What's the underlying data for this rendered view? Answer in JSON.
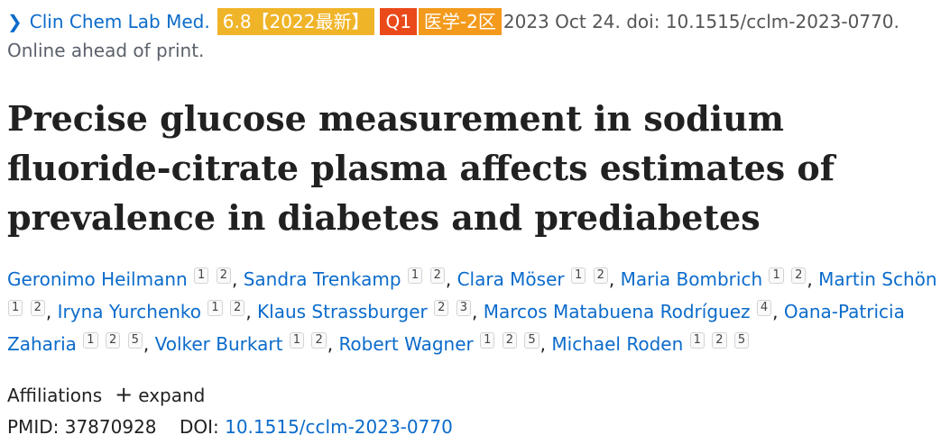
{
  "citation": {
    "journal": "Clin Chem Lab Med.",
    "impact_badge": "6.8【2022最新】",
    "quartile_badge": "Q1",
    "category_badge": "医学-2区",
    "date_doi": "2023 Oct 24. doi: 10.1515/cclm-2023-0770.",
    "status": "Online ahead of print."
  },
  "title": "Precise glucose measurement in sodium fluoride-citrate plasma affects estimates of prevalence in diabetes and prediabetes",
  "authors": [
    {
      "name": "Geronimo Heilmann",
      "affs": [
        "1",
        "2"
      ]
    },
    {
      "name": "Sandra Trenkamp",
      "affs": [
        "1",
        "2"
      ]
    },
    {
      "name": "Clara Möser",
      "affs": [
        "1",
        "2"
      ]
    },
    {
      "name": "Maria Bombrich",
      "affs": [
        "1",
        "2"
      ]
    },
    {
      "name": "Martin Schön",
      "affs": [
        "1",
        "2"
      ]
    },
    {
      "name": "Iryna Yurchenko",
      "affs": [
        "1",
        "2"
      ]
    },
    {
      "name": "Klaus Strassburger",
      "affs": [
        "2",
        "3"
      ]
    },
    {
      "name": "Marcos Matabuena Rodríguez",
      "affs": [
        "4"
      ]
    },
    {
      "name": "Oana-Patricia Zaharia",
      "affs": [
        "1",
        "2",
        "5"
      ]
    },
    {
      "name": "Volker Burkart",
      "affs": [
        "1",
        "2"
      ]
    },
    {
      "name": "Robert Wagner",
      "affs": [
        "1",
        "2",
        "5"
      ]
    },
    {
      "name": "Michael Roden",
      "affs": [
        "1",
        "2",
        "5"
      ]
    }
  ],
  "affiliations": {
    "label": "Affiliations",
    "expand_label": "expand"
  },
  "ids": {
    "pmid_label": "PMID:",
    "pmid": "37870928",
    "doi_label": "DOI:",
    "doi": "10.1515/cclm-2023-0770"
  }
}
